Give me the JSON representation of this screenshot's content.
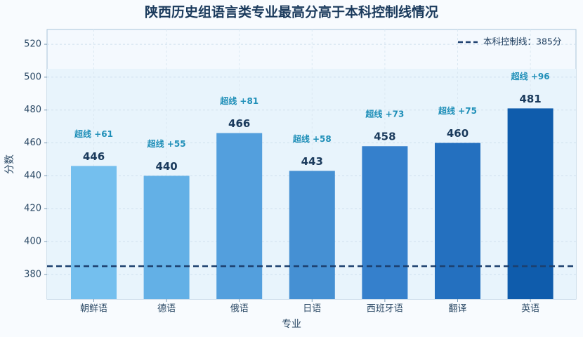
{
  "chart_data": {
    "type": "bar",
    "title": "陕西历史组语言类专业最高分高于本科控制线情况",
    "x_label": "专业",
    "y_label": "分数",
    "categories": [
      "朝鲜语",
      "德语",
      "俄语",
      "日语",
      "西班牙语",
      "翻译",
      "英语"
    ],
    "values": [
      446,
      440,
      466,
      443,
      458,
      460,
      481
    ],
    "colors": [
      "#74bfee",
      "#63b0e6",
      "#539fdd",
      "#4590d3",
      "#3580cc",
      "#2470bf",
      "#0f5cac"
    ],
    "annotations": [
      "超线 +61",
      "超线 +55",
      "超线 +81",
      "超线 +58",
      "超线 +73",
      "超线 +75",
      "超线 +96"
    ],
    "reference_line": {
      "value": 385,
      "label": "本科控制线：385分",
      "color": "#1c3f6e"
    },
    "ylim": [
      365,
      529
    ],
    "yticks": [
      380,
      400,
      420,
      440,
      460,
      480,
      500,
      520
    ],
    "grid": true,
    "legend": "upper right"
  }
}
